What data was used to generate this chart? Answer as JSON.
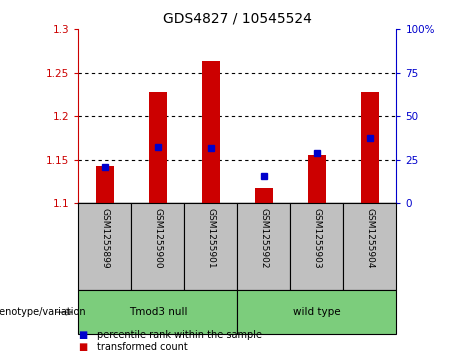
{
  "title": "GDS4827 / 10545524",
  "samples": [
    "GSM1255899",
    "GSM1255900",
    "GSM1255901",
    "GSM1255902",
    "GSM1255903",
    "GSM1255904"
  ],
  "red_values": [
    1.143,
    1.228,
    1.263,
    1.117,
    1.155,
    1.228
  ],
  "blue_values": [
    1.142,
    1.165,
    1.163,
    1.131,
    1.158,
    1.175
  ],
  "ylim_left": [
    1.1,
    1.3
  ],
  "ylim_right": [
    0,
    100
  ],
  "yticks_left": [
    1.1,
    1.15,
    1.2,
    1.25,
    1.3
  ],
  "yticks_right": [
    0,
    25,
    50,
    75,
    100
  ],
  "ytick_labels_left": [
    "1.1",
    "1.15",
    "1.2",
    "1.25",
    "1.3"
  ],
  "ytick_labels_right": [
    "0",
    "25",
    "50",
    "75",
    "100%"
  ],
  "groups": [
    {
      "label": "Tmod3 null",
      "indices": [
        0,
        1,
        2
      ],
      "color": "#7CCD7C"
    },
    {
      "label": "wild type",
      "indices": [
        3,
        4,
        5
      ],
      "color": "#7CCD7C"
    }
  ],
  "group_row_label": "genotype/variation",
  "legend_items": [
    {
      "label": "transformed count",
      "color": "#CC0000"
    },
    {
      "label": "percentile rank within the sample",
      "color": "#0000CC"
    }
  ],
  "bar_width": 0.35,
  "bar_base": 1.1,
  "red_color": "#CC0000",
  "blue_color": "#0000CC",
  "bg_color_plot": "#FFFFFF",
  "tick_region_color": "#C0C0C0",
  "dotted_line_color": "#000000",
  "title_fontsize": 10,
  "axis_fontsize": 7.5,
  "label_fontsize": 7.5,
  "sample_fontsize": 6.5
}
